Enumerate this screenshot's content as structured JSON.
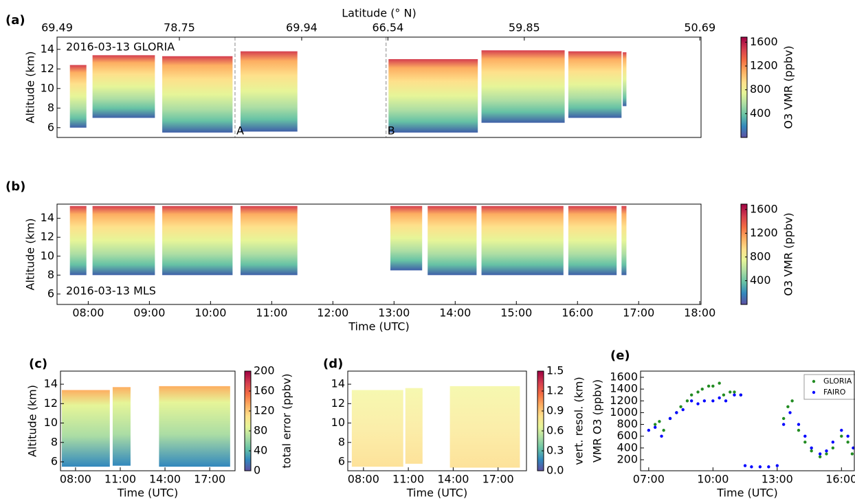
{
  "chart_data": [
    {
      "type": "heatmap",
      "panel_label": "(a)",
      "annotation_text": "2016-03-13 GLORIA",
      "top_axis_label": "Latitude (° N)",
      "top_ticks": [
        {
          "value": 7.49,
          "label": "69.49"
        },
        {
          "value": 9.49,
          "label": "78.75"
        },
        {
          "value": 11.49,
          "label": "69.94"
        },
        {
          "value": 12.9,
          "label": "66.54"
        },
        {
          "value": 15.13,
          "label": "59.85"
        },
        {
          "value": 18.0,
          "label": "50.69"
        }
      ],
      "ylabel": "Altitude (km)",
      "colorbar_label": "O3 VMR (ppbv)",
      "xlim": [
        7.49,
        18.02
      ],
      "ylim": [
        5.0,
        15.25
      ],
      "yticks": [
        6,
        8,
        10,
        12,
        14
      ],
      "clim": [
        0,
        1685
      ],
      "cticks": [
        400,
        800,
        1200,
        1600
      ],
      "segments": [
        {
          "start": 7.7,
          "end": 7.97,
          "bottom": 6.0,
          "top": 12.4
        },
        {
          "start": 8.07,
          "end": 9.09,
          "bottom": 7.0,
          "top": 13.4
        },
        {
          "start": 9.21,
          "end": 10.36,
          "bottom": 5.5,
          "top": 13.3
        },
        {
          "start": 10.49,
          "end": 11.42,
          "bottom": 5.6,
          "top": 13.8
        },
        {
          "start": 12.91,
          "end": 14.37,
          "bottom": 5.5,
          "top": 13.0
        },
        {
          "start": 14.43,
          "end": 15.79,
          "bottom": 6.5,
          "top": 13.9
        },
        {
          "start": 15.85,
          "end": 16.72,
          "bottom": 7.0,
          "top": 13.8
        },
        {
          "start": 16.74,
          "end": 16.8,
          "bottom": 8.2,
          "top": 13.7
        }
      ],
      "annotations": [
        {
          "x": 10.4,
          "label": "A"
        },
        {
          "x": 12.87,
          "label": "B"
        }
      ]
    },
    {
      "type": "heatmap",
      "panel_label": "(b)",
      "annotation_text": "2016-03-13 MLS",
      "ylabel": "Altitude (km)",
      "xlabel": "Time (UTC)",
      "colorbar_label": "O3 VMR (ppbv)",
      "xlim": [
        7.49,
        18.02
      ],
      "ylim": [
        4.9,
        15.5
      ],
      "yticks": [
        6,
        8,
        10,
        12,
        14
      ],
      "xticks": [
        {
          "value": 8,
          "label": "08:00"
        },
        {
          "value": 9,
          "label": "09:00"
        },
        {
          "value": 10,
          "label": "10:00"
        },
        {
          "value": 11,
          "label": "11:00"
        },
        {
          "value": 12,
          "label": "12:00"
        },
        {
          "value": 13,
          "label": "13:00"
        },
        {
          "value": 14,
          "label": "14:00"
        },
        {
          "value": 15,
          "label": "15:00"
        },
        {
          "value": 16,
          "label": "16:00"
        },
        {
          "value": 17,
          "label": "17:00"
        },
        {
          "value": 18,
          "label": "18:00"
        }
      ],
      "clim": [
        0,
        1690
      ],
      "cticks": [
        400,
        800,
        1200,
        1600
      ],
      "segments": [
        {
          "start": 7.7,
          "end": 7.97,
          "bottom": 8.0,
          "top": 15.3
        },
        {
          "start": 8.07,
          "end": 9.09,
          "bottom": 8.0,
          "top": 15.3
        },
        {
          "start": 9.21,
          "end": 10.36,
          "bottom": 8.0,
          "top": 15.3
        },
        {
          "start": 10.49,
          "end": 11.42,
          "bottom": 8.0,
          "top": 15.3
        },
        {
          "start": 12.94,
          "end": 13.46,
          "bottom": 8.5,
          "top": 15.3
        },
        {
          "start": 13.55,
          "end": 14.35,
          "bottom": 8.0,
          "top": 15.3
        },
        {
          "start": 14.43,
          "end": 15.77,
          "bottom": 8.0,
          "top": 15.3
        },
        {
          "start": 15.85,
          "end": 16.64,
          "bottom": 8.0,
          "top": 15.3
        },
        {
          "start": 16.72,
          "end": 16.8,
          "bottom": 8.0,
          "top": 15.3
        }
      ]
    },
    {
      "type": "heatmap",
      "panel_label": "(c)",
      "ylabel": "Altitude (km)",
      "xlabel": "Time (UTC)",
      "colorbar_label": "total error (ppbv)",
      "xlim": [
        6.99,
        18.7
      ],
      "ylim": [
        5.08,
        15.35
      ],
      "yticks": [
        6,
        8,
        10,
        12,
        14
      ],
      "xticks": [
        {
          "value": 8,
          "label": "08:00"
        },
        {
          "value": 11,
          "label": "11:00"
        },
        {
          "value": 14,
          "label": "14:00"
        },
        {
          "value": 17,
          "label": "17:00"
        }
      ],
      "clim": [
        0,
        200
      ],
      "cticks": [
        0,
        40,
        80,
        120,
        160,
        200
      ],
      "segments": [
        {
          "start": 7.08,
          "end": 10.3,
          "bottom": 5.5,
          "top": 13.4
        },
        {
          "start": 10.49,
          "end": 11.69,
          "bottom": 5.6,
          "top": 13.7
        },
        {
          "start": 13.6,
          "end": 18.37,
          "bottom": 5.5,
          "top": 13.8
        }
      ]
    },
    {
      "type": "heatmap",
      "panel_label": "(d)",
      "xlabel": "Time (UTC)",
      "colorbar_label": "vert. resol. (km)",
      "xlim": [
        6.95,
        18.9
      ],
      "ylim": [
        5.08,
        15.35
      ],
      "yticks": [
        6,
        8,
        10,
        12,
        14
      ],
      "xticks": [
        {
          "value": 8,
          "label": "08:00"
        },
        {
          "value": 11,
          "label": "11:00"
        },
        {
          "value": 14,
          "label": "14:00"
        },
        {
          "value": 17,
          "label": "17:00"
        }
      ],
      "clim": [
        0,
        1.5
      ],
      "cticks": [
        {
          "value": 0,
          "label": "0.0"
        },
        0.3,
        0.6,
        0.9,
        1.2,
        1.5
      ],
      "segments": [
        {
          "start": 7.22,
          "end": 10.66,
          "bottom": 5.5,
          "top": 13.4
        },
        {
          "start": 10.8,
          "end": 11.95,
          "bottom": 5.8,
          "top": 13.6
        },
        {
          "start": 13.78,
          "end": 18.46,
          "bottom": 5.4,
          "top": 13.8
        }
      ]
    },
    {
      "type": "scatter",
      "panel_label": "(e)",
      "ylabel": "VMR O3 (ppbv)",
      "xlabel": "Time (UTC)",
      "xlim": [
        6.62,
        16.6
      ],
      "ylim": [
        13,
        1705
      ],
      "yticks": [
        200,
        400,
        600,
        800,
        1000,
        1200,
        1400,
        1600
      ],
      "xticks": [
        {
          "value": 7,
          "label": "07:00"
        },
        {
          "value": 10,
          "label": "10:00"
        },
        {
          "value": 13,
          "label": "13:00"
        },
        {
          "value": 16,
          "label": "16:00"
        }
      ],
      "legend": "upper right",
      "series": [
        {
          "name": "GLORIA",
          "color": "#228b22",
          "x": [
            7.3,
            7.5,
            7.7,
            8.0,
            8.3,
            8.5,
            8.8,
            9.0,
            9.3,
            9.5,
            9.8,
            10.0,
            10.3,
            10.5,
            10.8,
            11.0,
            11.3,
            13.3,
            13.5,
            13.7,
            14.0,
            14.3,
            14.6,
            15.0,
            15.3,
            15.6,
            16.0,
            16.3,
            16.5
          ],
          "values": [
            800,
            850,
            700,
            900,
            1000,
            1100,
            1200,
            1300,
            1350,
            1400,
            1450,
            1450,
            1500,
            1300,
            1350,
            1350,
            1300,
            900,
            1100,
            1200,
            700,
            500,
            350,
            250,
            300,
            400,
            600,
            500,
            300
          ]
        },
        {
          "name": "FAIRO",
          "color": "#0000ff",
          "x": [
            7.0,
            7.3,
            7.6,
            8.0,
            8.3,
            8.6,
            9.0,
            9.3,
            9.6,
            10.0,
            10.3,
            10.6,
            11.0,
            11.3,
            11.5,
            11.8,
            12.2,
            12.6,
            13.0,
            13.3,
            13.6,
            14.0,
            14.3,
            14.6,
            15.0,
            15.3,
            15.6,
            16.0,
            16.3,
            16.55
          ],
          "values": [
            700,
            750,
            600,
            900,
            1000,
            1050,
            1200,
            1150,
            1200,
            1200,
            1250,
            1200,
            1300,
            1300,
            100,
            80,
            80,
            80,
            100,
            800,
            1000,
            800,
            600,
            400,
            300,
            350,
            500,
            700,
            600,
            400
          ]
        }
      ]
    }
  ]
}
